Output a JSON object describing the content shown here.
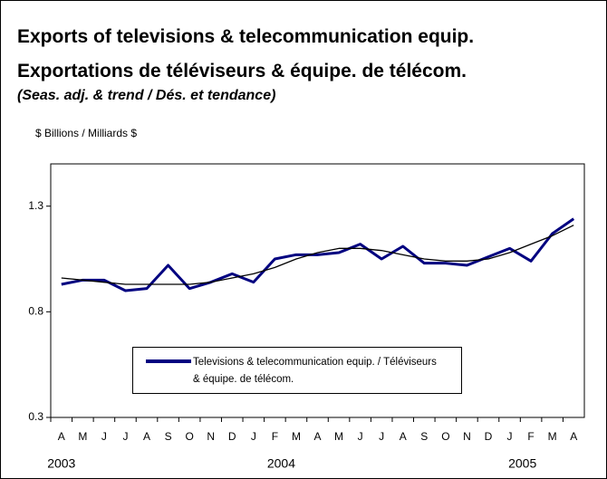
{
  "chart_data": {
    "type": "line",
    "title": "Exports of televisions & telecommunication equip.",
    "title_fr": "Exportations de téléviseurs & équipe. de télécom.",
    "subtitle": "(Seas. adj. & trend / Dés. et tendance)",
    "y_label": "$ Billions / Milliards $",
    "categories": [
      "A",
      "M",
      "J",
      "J",
      "A",
      "S",
      "O",
      "N",
      "D",
      "J",
      "F",
      "M",
      "A",
      "M",
      "J",
      "J",
      "A",
      "S",
      "O",
      "N",
      "D",
      "J",
      "F",
      "M",
      "A"
    ],
    "years": [
      "2003",
      "2004",
      "2005"
    ],
    "series": [
      {
        "name": "Televisions & telecommunication equip. / Téléviseurs & équipe. de télécom.",
        "color": "#000080",
        "values": [
          0.93,
          0.95,
          0.95,
          0.9,
          0.91,
          1.02,
          0.91,
          0.94,
          0.98,
          0.94,
          1.05,
          1.07,
          1.07,
          1.08,
          1.12,
          1.05,
          1.11,
          1.03,
          1.03,
          1.02,
          1.06,
          1.1,
          1.04,
          1.17,
          1.24
        ]
      },
      {
        "color": "#000000",
        "values": [
          0.96,
          0.95,
          0.94,
          0.93,
          0.93,
          0.93,
          0.93,
          0.94,
          0.96,
          0.98,
          1.01,
          1.05,
          1.08,
          1.1,
          1.1,
          1.09,
          1.07,
          1.05,
          1.04,
          1.04,
          1.05,
          1.08,
          1.12,
          1.16,
          1.21
        ]
      }
    ],
    "ylim": [
      0.3,
      1.5
    ],
    "yticks": [
      0.3,
      0.8,
      1.3
    ]
  }
}
